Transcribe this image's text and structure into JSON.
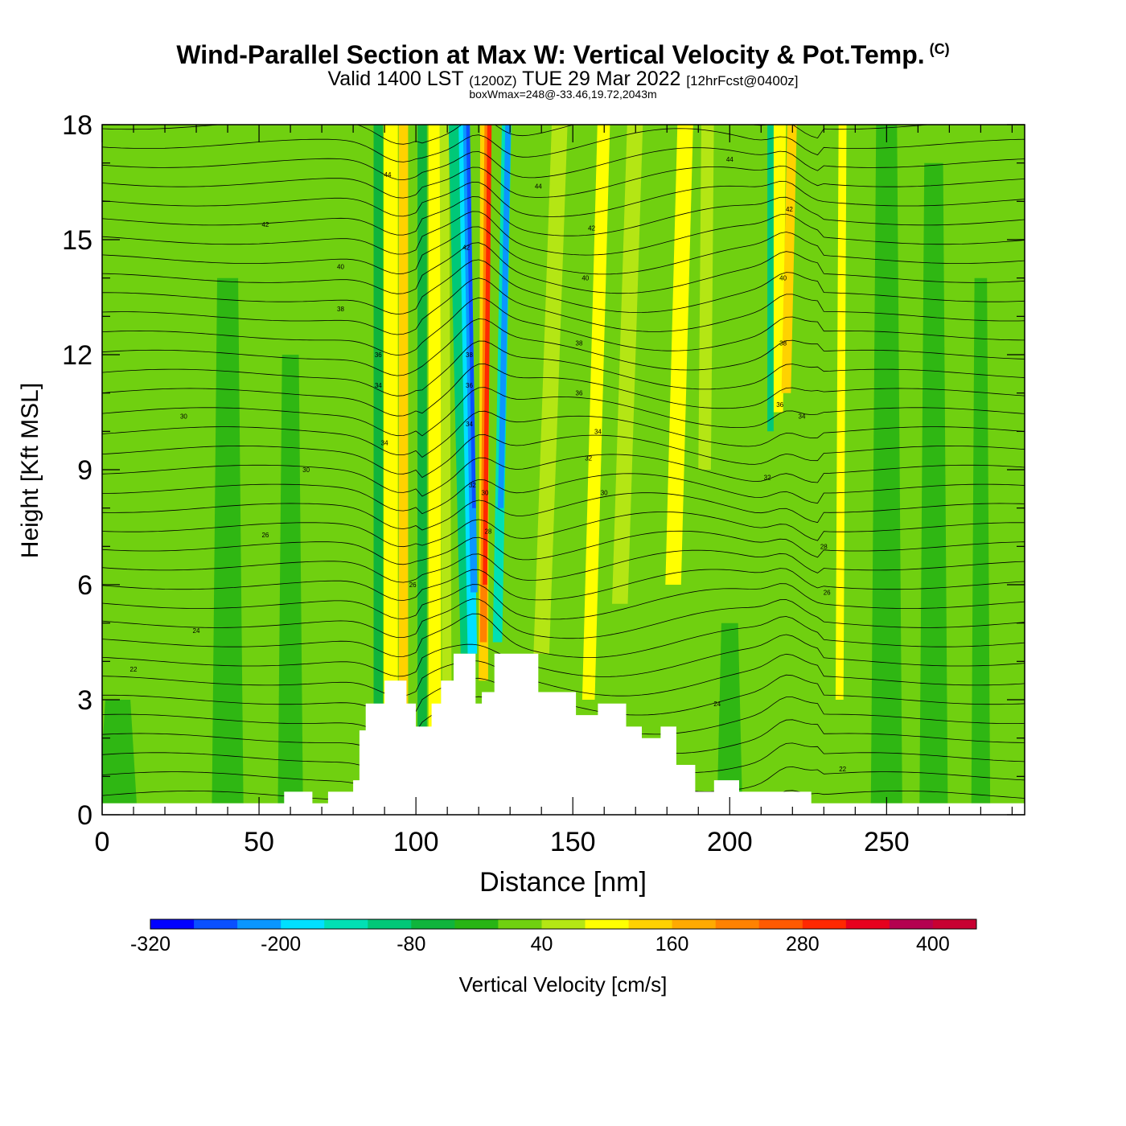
{
  "header": {
    "title": "Wind-Parallel Section at Max W: Vertical Velocity & Pot.Temp.",
    "copyright": "(C)",
    "valid_main": "Valid 1400 LST",
    "valid_utc": "(1200Z)",
    "valid_date": "TUE 29 Mar 2022",
    "forecast": "[12hrFcst@0400z]",
    "box_info": "boxWmax=248@-33.46,19.72,2043m"
  },
  "colors": {
    "background_field": "#70d010",
    "terrain": "#ffffff",
    "contour": "#000000",
    "frame": "#000000"
  },
  "chart_data": {
    "type": "heatmap",
    "title": "Wind-Parallel Section at Max W: Vertical Velocity & Pot.Temp.",
    "xlabel": "Distance [nm]",
    "ylabel": "Height [Kft MSL]",
    "xlim": [
      0,
      294
    ],
    "ylim": [
      0,
      18
    ],
    "x_ticks": [
      0,
      50,
      100,
      150,
      200,
      250
    ],
    "y_ticks": [
      0,
      3,
      6,
      9,
      12,
      15,
      18
    ],
    "terrain_profile": [
      [
        0,
        0.3
      ],
      [
        58,
        0.3
      ],
      [
        58,
        0.6
      ],
      [
        67,
        0.6
      ],
      [
        67,
        0.3
      ],
      [
        72,
        0.3
      ],
      [
        72,
        0.6
      ],
      [
        80,
        0.6
      ],
      [
        80,
        0.9
      ],
      [
        82,
        0.9
      ],
      [
        82,
        2.2
      ],
      [
        84,
        2.2
      ],
      [
        84,
        2.9
      ],
      [
        90,
        2.9
      ],
      [
        90,
        3.5
      ],
      [
        97,
        3.5
      ],
      [
        97,
        2.9
      ],
      [
        100,
        2.9
      ],
      [
        100,
        2.3
      ],
      [
        105,
        2.3
      ],
      [
        105,
        2.9
      ],
      [
        108,
        2.9
      ],
      [
        108,
        3.5
      ],
      [
        112,
        3.5
      ],
      [
        112,
        4.2
      ],
      [
        119,
        4.2
      ],
      [
        119,
        2.9
      ],
      [
        121,
        2.9
      ],
      [
        121,
        3.2
      ],
      [
        125,
        3.2
      ],
      [
        125,
        4.2
      ],
      [
        139,
        4.2
      ],
      [
        139,
        3.2
      ],
      [
        151,
        3.2
      ],
      [
        151,
        2.6
      ],
      [
        158,
        2.6
      ],
      [
        158,
        2.9
      ],
      [
        167,
        2.9
      ],
      [
        167,
        2.3
      ],
      [
        172,
        2.3
      ],
      [
        172,
        2.0
      ],
      [
        178,
        2.0
      ],
      [
        178,
        2.3
      ],
      [
        183,
        2.3
      ],
      [
        183,
        1.3
      ],
      [
        189,
        1.3
      ],
      [
        189,
        0.6
      ],
      [
        195,
        0.6
      ],
      [
        195,
        0.9
      ],
      [
        203,
        0.9
      ],
      [
        203,
        0.6
      ],
      [
        226,
        0.6
      ],
      [
        226,
        0.3
      ],
      [
        294,
        0.3
      ]
    ],
    "updraft_core": {
      "x_bottom": 121,
      "x_top": 123,
      "peak_value": 400
    },
    "downdraft_core": {
      "x_bottom": 118,
      "x_top": 116,
      "peak_value": -320
    },
    "colorbar": {
      "label": "Vertical Velocity [cm/s]",
      "min": -320,
      "max": 440,
      "step": 40,
      "tick_labels": [
        "-320",
        "-200",
        "-80",
        "40",
        "160",
        "280",
        "400"
      ],
      "colors": [
        "#0000ff",
        "#0a50ff",
        "#0a96ff",
        "#00e0ff",
        "#00e0b4",
        "#00c878",
        "#10b43c",
        "#28b414",
        "#70d010",
        "#b4e614",
        "#ffff00",
        "#ffd200",
        "#ffaa00",
        "#ff8200",
        "#ff5a00",
        "#ff2800",
        "#e6001e",
        "#b40050",
        "#c80032"
      ]
    },
    "contour_labels": [
      "44",
      "42",
      "40",
      "38",
      "36",
      "34",
      "32",
      "30",
      "28",
      "26",
      "24",
      "22"
    ]
  }
}
